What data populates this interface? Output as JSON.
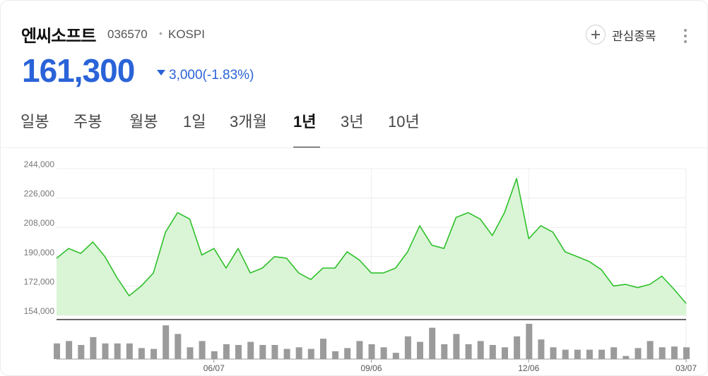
{
  "stock": {
    "name": "엔씨소프트",
    "code": "036570",
    "separator": "•",
    "market": "KOSPI",
    "price": "161,300",
    "change": "3,000(-1.83%)",
    "direction": "down"
  },
  "header": {
    "watch_label": "관심종목",
    "watch_icon": "plus-icon",
    "more_icon": "more-vertical-icon"
  },
  "tabs": [
    {
      "label": "일봉",
      "active": false
    },
    {
      "label": "주봉",
      "active": false
    },
    {
      "label": "월봉",
      "active": false
    },
    {
      "label": "1일",
      "active": false
    },
    {
      "label": "3개월",
      "active": false
    },
    {
      "label": "1년",
      "active": true
    },
    {
      "label": "3년",
      "active": false
    },
    {
      "label": "10년",
      "active": false
    }
  ],
  "colors": {
    "accent": "#2a63d8",
    "line": "#2fc02a",
    "area": "#d9f5d6",
    "volume": "#9b9b9b"
  },
  "chart_data": {
    "type": "area",
    "y_ticks": [
      "244,000",
      "226,000",
      "208,000",
      "190,000",
      "172,000",
      "154,000"
    ],
    "ylim": [
      154000,
      244000
    ],
    "x_ticks": [
      {
        "index": 13,
        "label": "06/07"
      },
      {
        "index": 26,
        "label": "09/06"
      },
      {
        "index": 39,
        "label": "12/06"
      },
      {
        "index": 52,
        "label": "03/07"
      }
    ],
    "grid": true,
    "values": [
      189000,
      195000,
      192000,
      199000,
      190000,
      177000,
      166000,
      172000,
      180000,
      205000,
      217000,
      213000,
      191000,
      195000,
      183000,
      195000,
      180000,
      183000,
      190000,
      189000,
      180000,
      176000,
      183000,
      183000,
      193000,
      188000,
      180000,
      180000,
      183000,
      193000,
      209000,
      197000,
      195000,
      214000,
      217000,
      213000,
      203000,
      217000,
      238000,
      201000,
      209000,
      205000,
      193000,
      190000,
      187000,
      182000,
      172000,
      173000,
      171000,
      173000,
      178000,
      170000,
      161300
    ],
    "volume": [
      20,
      23,
      18,
      28,
      20,
      20,
      20,
      14,
      13,
      43,
      32,
      15,
      23,
      10,
      19,
      18,
      22,
      18,
      18,
      13,
      15,
      13,
      26,
      10,
      14,
      23,
      19,
      15,
      8,
      29,
      22,
      40,
      19,
      32,
      19,
      23,
      18,
      15,
      29,
      45,
      25,
      15,
      12,
      12,
      12,
      12,
      15,
      4,
      14,
      23,
      15,
      16,
      15
    ]
  }
}
